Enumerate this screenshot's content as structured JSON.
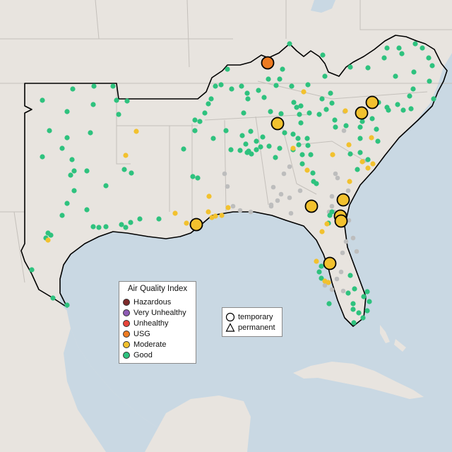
{
  "legend": {
    "title": "Air Quality Index",
    "categories": [
      {
        "label": "Hazardous",
        "color": "#7e2a2a"
      },
      {
        "label": "Very Unhealthy",
        "color": "#8e5bb5"
      },
      {
        "label": "Unhealthy",
        "color": "#e8443a"
      },
      {
        "label": "USG",
        "color": "#ee7b22"
      },
      {
        "label": "Moderate",
        "color": "#f2c12e"
      },
      {
        "label": "Good",
        "color": "#2ec27e"
      }
    ]
  },
  "type_legend": {
    "temporary": "temporary",
    "permanent": "permanent"
  },
  "colors": {
    "land": "#e8e4df",
    "water": "#c9d8e3",
    "border": "#000000",
    "state_lines": "#c4c0bb",
    "no_data": "#bdbdbd"
  },
  "monitors": {
    "temporary": [
      {
        "aqi": "USG"
      },
      {
        "aqi": "Moderate"
      },
      {
        "aqi": "Moderate"
      },
      {
        "aqi": "Moderate"
      },
      {
        "aqi": "Moderate"
      },
      {
        "aqi": "Moderate"
      },
      {
        "aqi": "Moderate"
      },
      {
        "aqi": "Moderate"
      },
      {
        "aqi": "Moderate"
      },
      {
        "aqi": "Moderate"
      }
    ]
  }
}
